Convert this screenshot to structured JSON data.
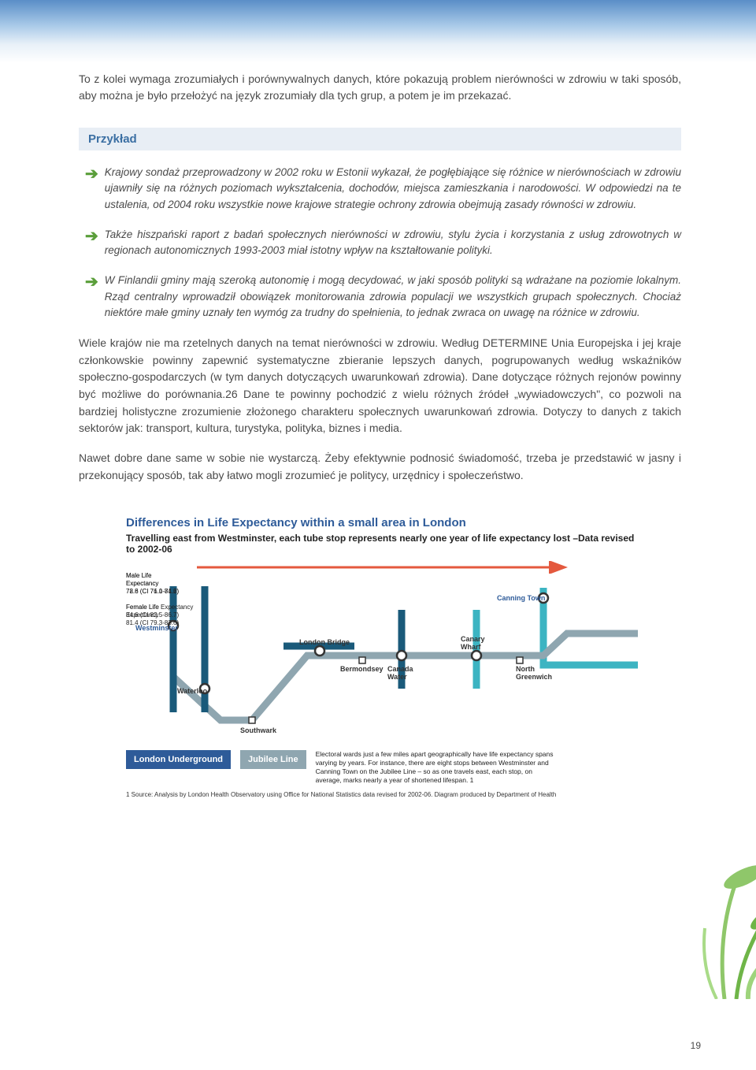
{
  "intro": "To z kolei wymaga zrozumiałych i porównywalnych danych, które pokazują problem nierówności w zdrowiu w taki sposób, aby można je było przełożyć na język zrozumiały dla tych grup, a potem je im przekazać.",
  "example_heading": "Przykład",
  "examples": [
    "Krajowy sondaż przeprowadzony w 2002 roku w Estonii wykazał, że pogłębiające się różnice w nierównościach w zdrowiu ujawniły się na różnych poziomach wykształcenia, dochodów, miejsca zamieszkania i narodowości. W odpowiedzi na te ustalenia, od 2004 roku wszystkie nowe krajowe strategie ochrony zdrowia obejmują zasady równości w zdrowiu.",
    "Także hiszpański raport z badań społecznych nierówności w zdrowiu, stylu życia i korzystania z usług zdrowotnych w regionach autonomicznych 1993-2003 miał istotny wpływ na kształtowanie polityki.",
    "W Finlandii gminy mają szeroką autonomię i mogą decydować, w jaki sposób polityki są wdrażane na poziomie lokalnym. Rząd centralny wprowadził obowiązek monitorowania zdrowia populacji we wszystkich grupach społecznych. Chociaż niektóre małe gminy uznały ten wymóg za trudny do spełnienia, to jednak zwraca on uwagę na różnice w zdrowiu."
  ],
  "body1": "Wiele krajów nie ma rzetelnych danych na temat nierówności w zdrowiu. Według DETERMINE Unia Europejska i jej kraje członkowskie powinny zapewnić systematyczne zbieranie lepszych danych, pogrupowanych według wskaźników społeczno-gospodarczych (w tym danych dotyczących uwarunkowań zdrowia). Dane dotyczące różnych rejonów powinny być możliwe do porównania.26 Dane te powinny pochodzić z wielu różnych źródeł „wywiadowczych\", co pozwoli na bardziej holistyczne zrozumienie złożonego charakteru społecznych uwarunkowań zdrowia. Dotyczy to danych z takich sektorów jak: transport, kultura, turystyka, polityka, biznes i media.",
  "body2": "Nawet dobre dane same w sobie nie wystarczą. Żeby efektywnie podnosić świadomość, trzeba je przedstawić w jasny i przekonujący sposób, tak aby łatwo mogli zrozumieć je politycy, urzędnicy i społeczeństwo.",
  "figure": {
    "title": "Differences in Life Expectancy within a small area in London",
    "subtitle": "Travelling east from Westminster, each tube stop represents nearly one year of life expectancy lost –Data revised to 2002-06",
    "male_left_label": "Male Life\nExpectancy\n78.6 (CI 76.0-81.2)",
    "female_left_label": "Female Life Expectancy\n84.6 (CI 82.5-86.7)",
    "male_right_label": "Male Life\nExpectancy\n72.8 (CI 71.1-74.6)",
    "female_right_label": "Female Life\nExpectancy\n81.4 (CI 79.3-83.6)",
    "stations": {
      "westminster": "Westminster",
      "waterloo": "Waterloo",
      "southwark": "Southwark",
      "london_bridge": "London Bridge",
      "bermondsey": "Bermondsey",
      "canada_water": "Canada Water",
      "canary_wharf": "Canary Wharf",
      "canning_town": "Canning Town",
      "north_greenwich": "North Greenwich"
    },
    "legend_underground": "London Underground",
    "legend_jubilee": "Jubilee Line",
    "legend_text": "Electoral wards just a few miles apart geographically have life expectancy spans varying by years. For instance, there are eight stops between Westminster and Canning Town on the Jubilee Line – so as one travels east, each stop, on average, marks nearly a year of shortened lifespan. 1",
    "source": "1 Source: Analysis by London Health Observatory using Office for National Statistics data revised for 2002-06. Diagram produced by Department of Health",
    "colors": {
      "title_color": "#2e5b99",
      "underground": "#1a5a7a",
      "jubilee": "#8fa6b0",
      "dlr": "#3cb4c2",
      "arrow": "#e4593e"
    }
  },
  "page_number": "19"
}
